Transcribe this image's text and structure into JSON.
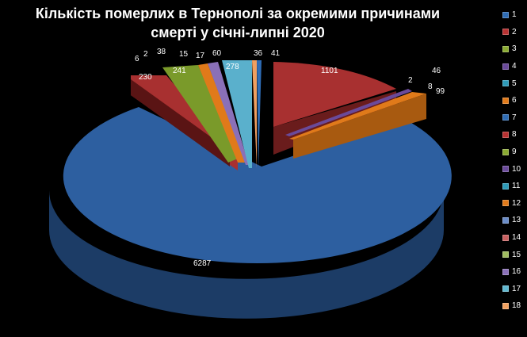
{
  "title_line1": "Кількість померлих в Тернополі за окремими причинами",
  "title_line2": "смерті у січні-липні 2020",
  "chart_data": {
    "type": "pie",
    "subtype": "3d-exploded",
    "title": "Кількість померлих в Тернополі за окремими причинами смерті у січні-липні 2020",
    "categories": [
      "1",
      "2",
      "3",
      "4",
      "5",
      "6",
      "7",
      "8",
      "9",
      "10",
      "11",
      "12",
      "13",
      "14",
      "15",
      "16",
      "17",
      "18"
    ],
    "values": [
      41,
      1101,
      2,
      46,
      8,
      99,
      6287,
      230,
      241,
      6,
      2,
      38,
      15,
      17,
      null,
      60,
      278,
      36
    ],
    "colors": [
      "#2e6cb5",
      "#b83232",
      "#8aaa32",
      "#6a4a9a",
      "#2e9ab8",
      "#e07a1a",
      "#2e6cb5",
      "#b83232",
      "#8aaa32",
      "#6a4a9a",
      "#2e9ab8",
      "#e07a1a",
      "#6a8cc8",
      "#c86060",
      "#a0bc60",
      "#8a70b8",
      "#60b8d0",
      "#f0a060"
    ],
    "legend_position": "right",
    "data_labels_shown": true
  },
  "legend": [
    {
      "label": "1",
      "color": "#2e6cb5"
    },
    {
      "label": "2",
      "color": "#b83232"
    },
    {
      "label": "3",
      "color": "#8aaa32"
    },
    {
      "label": "4",
      "color": "#6a4a9a"
    },
    {
      "label": "5",
      "color": "#2e9ab8"
    },
    {
      "label": "6",
      "color": "#e07a1a"
    },
    {
      "label": "7",
      "color": "#2e6cb5"
    },
    {
      "label": "8",
      "color": "#b83232"
    },
    {
      "label": "9",
      "color": "#8aaa32"
    },
    {
      "label": "10",
      "color": "#6a4a9a"
    },
    {
      "label": "11",
      "color": "#2e9ab8"
    },
    {
      "label": "12",
      "color": "#e07a1a"
    },
    {
      "label": "13",
      "color": "#6a8cc8"
    },
    {
      "label": "14",
      "color": "#c86060"
    },
    {
      "label": "15",
      "color": "#a0bc60"
    },
    {
      "label": "16",
      "color": "#8a70b8"
    },
    {
      "label": "17",
      "color": "#60b8d0"
    },
    {
      "label": "18",
      "color": "#f0a060"
    }
  ],
  "labels": {
    "l1": "41",
    "l2": "1101",
    "l3": "2",
    "l4": "46",
    "l5": "8",
    "l6": "99",
    "l7": "6287",
    "l8": "230",
    "l9": "241",
    "l10": "6",
    "l11": "2",
    "l12": "38",
    "l13": "15",
    "l14": "17",
    "l16": "60",
    "l17": "278",
    "l18": "36"
  }
}
